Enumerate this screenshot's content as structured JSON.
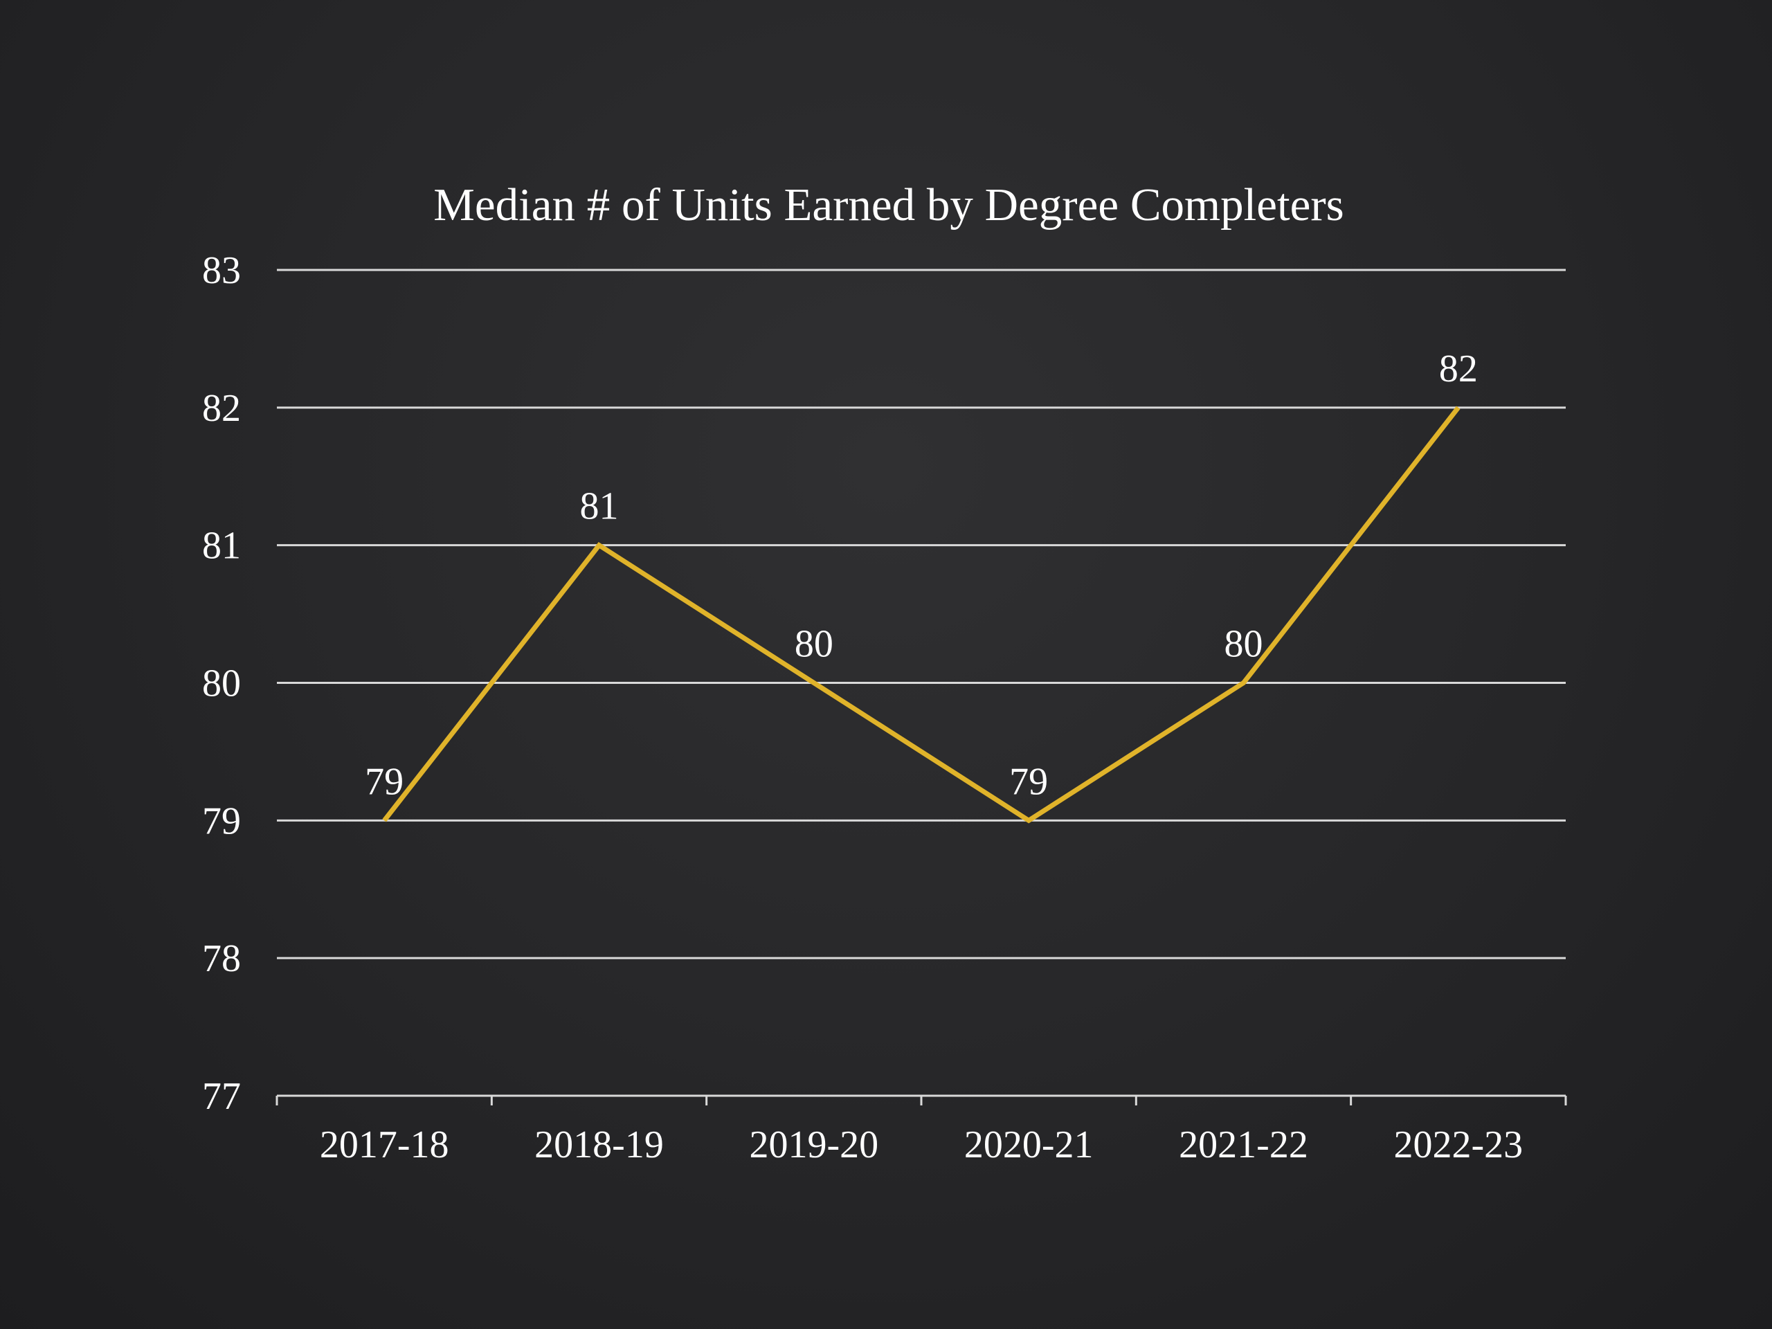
{
  "chart_data": {
    "type": "line",
    "title": "Median # of Units Earned by Degree Completers",
    "xlabel": "",
    "ylabel": "",
    "categories": [
      "2017-18",
      "2018-19",
      "2019-20",
      "2020-21",
      "2021-22",
      "2022-23"
    ],
    "series": [
      {
        "values": [
          79,
          81,
          80,
          79,
          80,
          82
        ],
        "color": "#E0B32A"
      }
    ],
    "data_labels": [
      "79",
      "81",
      "80",
      "79",
      "80",
      "82"
    ],
    "ylim": [
      77,
      83
    ],
    "yticks": [
      77,
      78,
      79,
      80,
      81,
      82,
      83
    ],
    "grid": true,
    "legend": "none"
  },
  "colors": {
    "text": "#FFFFFF",
    "gridline": "#D9D9D9",
    "axis": "#D9D9D9",
    "line": "#E0B32A"
  }
}
